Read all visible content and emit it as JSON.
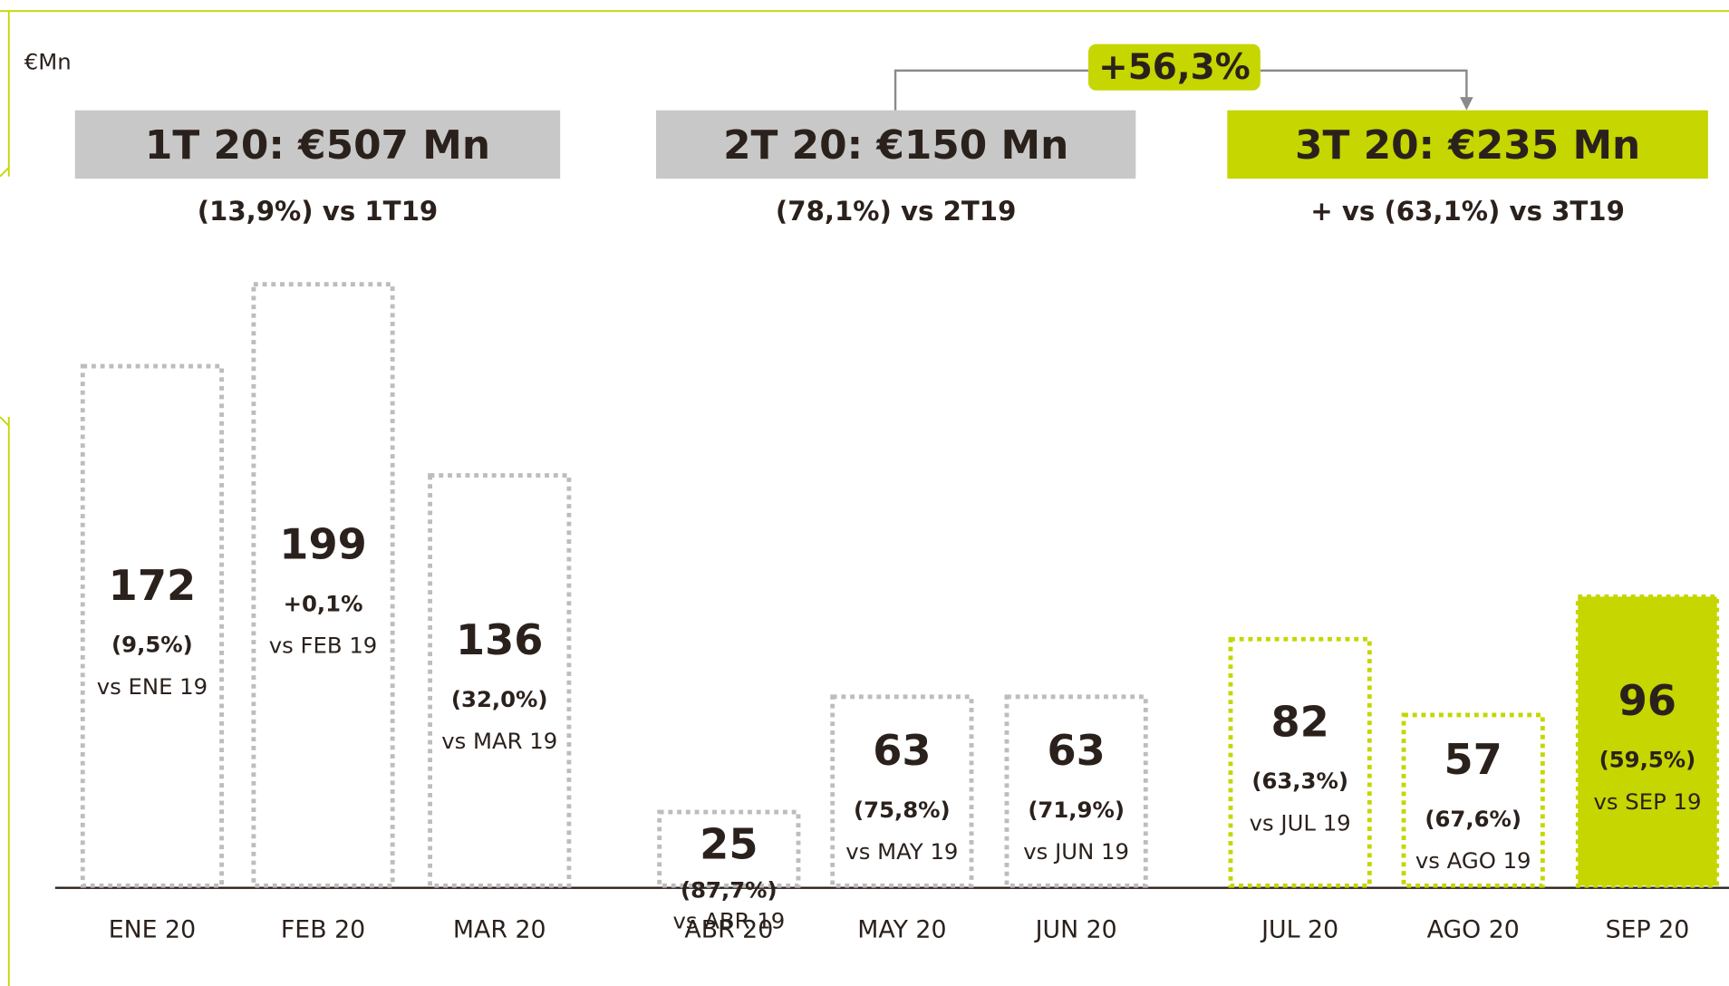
{
  "chart_data": {
    "type": "bar",
    "unit": "€Mn",
    "categories": [
      "ENE 20",
      "FEB 20",
      "MAR 20",
      "ABR 20",
      "MAY 20",
      "JUN 20",
      "JUL 20",
      "AGO 20",
      "SEP 20"
    ],
    "values": [
      172,
      199,
      136,
      25,
      63,
      63,
      82,
      57,
      96
    ],
    "changes": [
      "(9,5%)",
      "+0,1%",
      "(32,0%)",
      "(87,7%)",
      "(75,8%)",
      "(71,9%)",
      "(63,3%)",
      "(67,6%)",
      "(59,5%)"
    ],
    "comparisons": [
      "vs ENE 19",
      "vs FEB 19",
      "vs MAR 19",
      "vs ABR 19",
      "vs MAY 19",
      "vs JUN 19",
      "vs JUL 19",
      "vs AGO 19",
      "vs SEP 19"
    ],
    "colors": [
      "#bdbdbd",
      "#bdbdbd",
      "#bdbdbd",
      "#bdbdbd",
      "#bdbdbd",
      "#bdbdbd",
      "#c5d600",
      "#c5d600",
      "#c5d600"
    ],
    "filled": [
      false,
      false,
      false,
      false,
      false,
      false,
      false,
      false,
      true
    ],
    "quarters": [
      {
        "label": "1T 20: €507 Mn",
        "change": "(13,9%) vs 1T19",
        "color": "#c8c8c8"
      },
      {
        "label": "2T 20: €150 Mn",
        "change": "(78,1%) vs 2T19",
        "color": "#c8c8c8"
      },
      {
        "label": "3T 20: €235 Mn",
        "change": "+ vs (63,1%) vs 3T19",
        "color": "#c5d600"
      }
    ],
    "growth": "+56,3%"
  }
}
